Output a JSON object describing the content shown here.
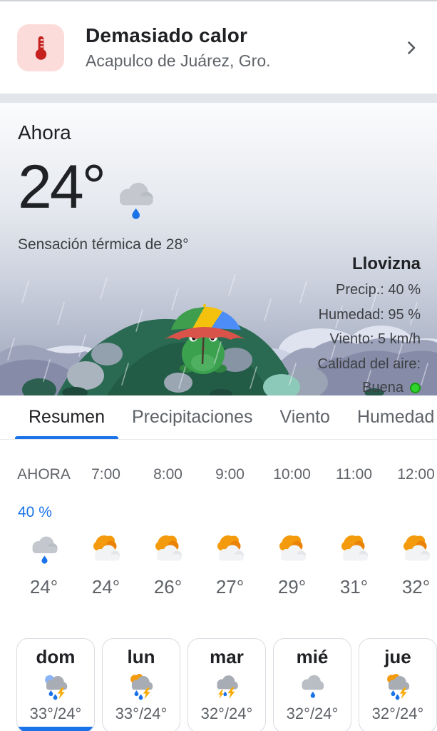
{
  "alert_card": {
    "title": "Demasiado calor",
    "location": "Acapulco de Juárez, Gro."
  },
  "current": {
    "section_label": "Ahora",
    "temperature": "24°",
    "condition_icon": "rain-light",
    "feels_like": "Sensación térmica de 28°",
    "condition": "Llovizna",
    "details": [
      "Precip.: 40 %",
      "Humedad: 95 %",
      "Viento: 5 km/h"
    ],
    "air_quality_label": "Calidad del aire:",
    "air_quality_value": "Buena"
  },
  "tabs": [
    {
      "label": "Resumen",
      "active": true
    },
    {
      "label": "Precipitaciones",
      "active": false
    },
    {
      "label": "Viento",
      "active": false
    },
    {
      "label": "Humedad",
      "active": false
    }
  ],
  "hourly": {
    "precip_label": "40 %",
    "hours": [
      {
        "time": "AHORA",
        "icon": "rain-light",
        "temp": "24°"
      },
      {
        "time": "7:00",
        "icon": "partly-cloudy",
        "temp": "24°"
      },
      {
        "time": "8:00",
        "icon": "partly-cloudy",
        "temp": "26°"
      },
      {
        "time": "9:00",
        "icon": "partly-cloudy",
        "temp": "27°"
      },
      {
        "time": "10:00",
        "icon": "partly-cloudy",
        "temp": "29°"
      },
      {
        "time": "11:00",
        "icon": "partly-cloudy",
        "temp": "31°"
      },
      {
        "time": "12:00",
        "icon": "partly-cloudy",
        "temp": "32°"
      }
    ]
  },
  "daily": [
    {
      "day": "dom",
      "icon": "storm-moon",
      "temps": "33°/24°",
      "selected": true
    },
    {
      "day": "lun",
      "icon": "storm-sun",
      "temps": "33°/24°",
      "selected": false
    },
    {
      "day": "mar",
      "icon": "storm",
      "temps": "32°/24°",
      "selected": false
    },
    {
      "day": "mié",
      "icon": "rain",
      "temps": "32°/24°",
      "selected": false
    },
    {
      "day": "jue",
      "icon": "storm-sun",
      "temps": "32°/24°",
      "selected": false
    }
  ],
  "colors": {
    "accent_blue": "#1a73e8",
    "alert_red": "#c5221f",
    "alert_icon_bg": "#fbdcda",
    "aqi_green": "#2fd32c"
  }
}
